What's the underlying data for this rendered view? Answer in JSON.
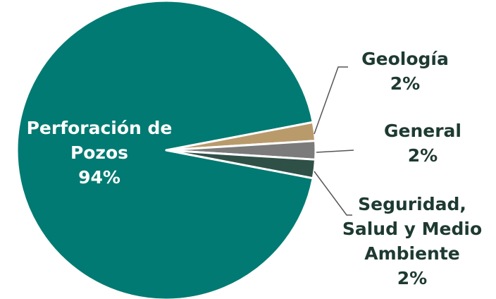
{
  "chart_data": {
    "type": "pie",
    "categories": [
      "Perforación de Pozos",
      "Geología",
      "General",
      "Seguridad, Salud y Medio Ambiente"
    ],
    "values": [
      94,
      2,
      2,
      2
    ],
    "value_labels": [
      "94%",
      "2%",
      "2%",
      "2%"
    ],
    "colors": [
      "#007a72",
      "#b99b6b",
      "#7b7b7b",
      "#2f5046"
    ]
  }
}
